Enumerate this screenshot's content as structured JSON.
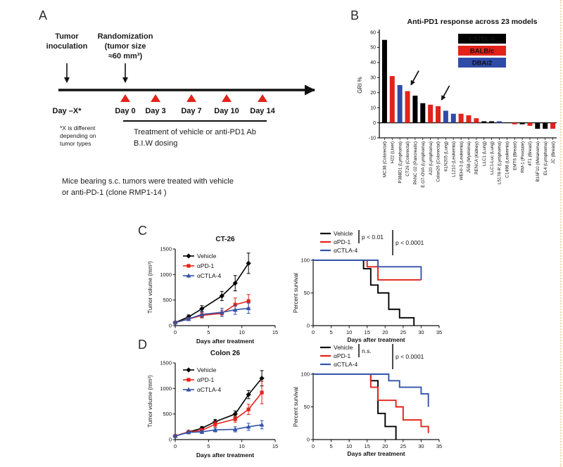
{
  "page": {
    "border_color": "#f2d8a8"
  },
  "colors": {
    "black": "#000000",
    "red": "#e2231a",
    "blue": "#2e4ba8",
    "survival_blue": "#3353a8"
  },
  "panel_a": {
    "label": "A",
    "tumor_inoculation_lines": [
      "Tumor",
      "inoculation"
    ],
    "randomization_lines": [
      "Randomization",
      "(tumor size",
      "≈60 mm³)"
    ],
    "day_labels": [
      "Day –X*",
      "Day 0",
      "Day 3",
      "Day 7",
      "Day 10",
      "Day 14"
    ],
    "footnote_lines": [
      "*X is different",
      "depending on",
      "tumor types"
    ],
    "treatment_lines": [
      "Treatment of vehicle or anti-PD1 Ab",
      "B.I.W dosing"
    ],
    "caption_lines": [
      "Mice bearing s.c. tumors were treated with vehicle",
      "or anti-PD-1 (clone RMP1-14 )"
    ]
  },
  "panel_b": {
    "label": "B"
  },
  "panel_c": {
    "label": "C"
  },
  "panel_d": {
    "label": "D"
  },
  "chart_data": [
    {
      "id": "b_bar",
      "type": "bar",
      "title": "Anti-PD1 response across 23 models",
      "ylabel": "GRI %",
      "ylim": [
        -10,
        60
      ],
      "yticks": [
        -10,
        0,
        10,
        20,
        30,
        40,
        50,
        60
      ],
      "categories": [
        "MC38 (Colorectal)",
        "H22 (Liver)",
        "P388D1 (Lymphoma)",
        "CT26 (Colorectal)",
        "PANC 02 (Pancreatic)",
        "E.G7-OVA (Lymphoma)",
        "A20 (Lymphoma)",
        "Colon26 (Colorectal)",
        "KLN205 (Lung)",
        "L1210 (Leukemia)",
        "WEHI-3 (Leukemia)",
        "J558 (Myeloma)",
        "RENCA (Kidney)",
        "LLC1 (Lung)",
        "LLC1-Luc (Lung)",
        "L5178-R (Lymphoma)",
        "C1498 (Leukemia)",
        "EMT6 (Breast)",
        "RM-1 (Prostate)",
        "4T1 (Breast)",
        "B16F10 (Melanoma)",
        "EL4 (Lymphoma)",
        "JC (Breast)"
      ],
      "values": [
        55,
        31,
        25,
        21,
        18,
        13,
        12,
        11,
        8,
        6,
        6,
        5,
        3,
        1,
        1,
        1,
        0,
        -1,
        -1,
        -2,
        -4,
        -4,
        -4
      ],
      "strains": [
        "C57BL/6",
        "BALB/c",
        "DBA/2",
        "BALB/c",
        "C57BL/6",
        "C57BL/6",
        "BALB/c",
        "BALB/c",
        "DBA/2",
        "DBA/2",
        "BALB/c",
        "BALB/c",
        "BALB/c",
        "C57BL/6",
        "C57BL/6",
        "DBA/2",
        "C57BL/6",
        "BALB/c",
        "C57BL/6",
        "BALB/c",
        "C57BL/6",
        "C57BL/6",
        "BALB/c"
      ],
      "strain_colors": {
        "C57BL/6": "#000000",
        "BALB/c": "#e2231a",
        "DBA/2": "#2e4ba8"
      },
      "legend": [
        {
          "label": "C57BL/6",
          "color": "#000000"
        },
        {
          "label": "BALB/c",
          "color": "#e2231a"
        },
        {
          "label": "DBA/2",
          "color": "#2e4ba8"
        }
      ],
      "arrow_indices": [
        3,
        7
      ],
      "legend_position": "upper right",
      "grid": false
    },
    {
      "id": "c_growth",
      "type": "line",
      "title": "CT-26",
      "xlabel": "Days after treatment",
      "ylabel": "Tumor volume (mm³)",
      "xlim": [
        0,
        15
      ],
      "ylim": [
        0,
        1500
      ],
      "xticks": [
        0,
        5,
        10,
        15
      ],
      "yticks": [
        0,
        500,
        1000,
        1500
      ],
      "x": [
        0,
        2,
        4,
        7,
        9,
        11
      ],
      "series": [
        {
          "name": "Vehicle",
          "color": "#000000",
          "marker": "diamond",
          "values": [
            60,
            170,
            330,
            580,
            830,
            1220
          ],
          "errors": [
            20,
            40,
            60,
            90,
            150,
            200
          ]
        },
        {
          "name": "αPD-1",
          "color": "#e2231a",
          "marker": "square",
          "values": [
            60,
            130,
            200,
            240,
            410,
            480
          ],
          "errors": [
            20,
            30,
            50,
            60,
            130,
            130
          ]
        },
        {
          "name": "αCTLA-4",
          "color": "#3353a8",
          "marker": "triangle",
          "values": [
            60,
            130,
            220,
            260,
            310,
            340
          ],
          "errors": [
            20,
            30,
            60,
            80,
            90,
            100
          ]
        }
      ],
      "legend_position": "upper left",
      "grid": false
    },
    {
      "id": "c_survival",
      "type": "step",
      "xlabel": "Days after treatment",
      "ylabel": "Percent survival",
      "xlim": [
        0,
        35
      ],
      "ylim": [
        0,
        100
      ],
      "xticks": [
        0,
        5,
        10,
        15,
        20,
        25,
        30,
        35
      ],
      "yticks": [
        0,
        50,
        100
      ],
      "series": [
        {
          "name": "Vehicle",
          "color": "#000000",
          "points": [
            [
              0,
              100
            ],
            [
              14,
              100
            ],
            [
              14,
              87
            ],
            [
              16,
              87
            ],
            [
              16,
              62
            ],
            [
              18,
              62
            ],
            [
              18,
              50
            ],
            [
              21,
              50
            ],
            [
              21,
              25
            ],
            [
              24,
              25
            ],
            [
              24,
              12
            ],
            [
              28,
              12
            ],
            [
              28,
              0
            ]
          ]
        },
        {
          "name": "αPD-1",
          "color": "#e2231a",
          "points": [
            [
              0,
              100
            ],
            [
              15,
              100
            ],
            [
              15,
              90
            ],
            [
              18,
              90
            ],
            [
              18,
              70
            ],
            [
              30,
              70
            ]
          ]
        },
        {
          "name": "αCTLA-4",
          "color": "#3353a8",
          "points": [
            [
              0,
              100
            ],
            [
              18,
              100
            ],
            [
              18,
              90
            ],
            [
              30,
              90
            ],
            [
              30,
              70
            ]
          ]
        }
      ],
      "annotations": [
        {
          "text": "p < 0.01"
        },
        {
          "text": "p < 0.0001"
        }
      ],
      "legend_position": "upper left",
      "grid": false
    },
    {
      "id": "d_growth",
      "type": "line",
      "title": "Colon 26",
      "xlabel": "Days after treatment",
      "ylabel": "Tumor volume (mm³)",
      "xlim": [
        0,
        15
      ],
      "ylim": [
        0,
        1500
      ],
      "xticks": [
        0,
        5,
        10,
        15
      ],
      "yticks": [
        0,
        500,
        1000,
        1500
      ],
      "x": [
        0,
        2,
        4,
        6,
        9,
        11,
        13
      ],
      "series": [
        {
          "name": "Vehicle",
          "color": "#000000",
          "marker": "diamond",
          "values": [
            70,
            150,
            220,
            350,
            500,
            880,
            1200
          ],
          "errors": [
            15,
            25,
            35,
            45,
            60,
            80,
            150
          ]
        },
        {
          "name": "αPD-1",
          "color": "#e2231a",
          "marker": "square",
          "values": [
            70,
            150,
            180,
            300,
            400,
            590,
            920
          ],
          "errors": [
            15,
            25,
            35,
            50,
            60,
            100,
            220
          ]
        },
        {
          "name": "αCTLA-4",
          "color": "#3353a8",
          "marker": "triangle",
          "values": [
            70,
            140,
            150,
            190,
            200,
            250,
            290
          ],
          "errors": [
            15,
            20,
            30,
            40,
            50,
            70,
            80
          ]
        }
      ],
      "legend_position": "upper left",
      "grid": false
    },
    {
      "id": "d_survival",
      "type": "step",
      "xlabel": "Days after treatment",
      "ylabel": "Percent survival",
      "xlim": [
        0,
        35
      ],
      "ylim": [
        0,
        100
      ],
      "xticks": [
        0,
        5,
        10,
        15,
        20,
        25,
        30,
        35
      ],
      "yticks": [
        0,
        50,
        100
      ],
      "series": [
        {
          "name": "Vehicle",
          "color": "#000000",
          "points": [
            [
              0,
              100
            ],
            [
              16,
              100
            ],
            [
              16,
              90
            ],
            [
              18,
              90
            ],
            [
              18,
              40
            ],
            [
              20,
              40
            ],
            [
              20,
              20
            ],
            [
              23,
              20
            ],
            [
              23,
              0
            ]
          ]
        },
        {
          "name": "αPD-1",
          "color": "#e2231a",
          "points": [
            [
              0,
              100
            ],
            [
              16,
              100
            ],
            [
              16,
              80
            ],
            [
              18,
              80
            ],
            [
              18,
              60
            ],
            [
              23,
              60
            ],
            [
              23,
              50
            ],
            [
              25,
              50
            ],
            [
              25,
              30
            ],
            [
              30,
              30
            ],
            [
              30,
              20
            ],
            [
              32,
              20
            ],
            [
              32,
              10
            ]
          ]
        },
        {
          "name": "αCTLA-4",
          "color": "#3353a8",
          "points": [
            [
              0,
              100
            ],
            [
              21,
              100
            ],
            [
              21,
              90
            ],
            [
              24,
              90
            ],
            [
              24,
              80
            ],
            [
              30,
              80
            ],
            [
              30,
              70
            ],
            [
              32,
              70
            ],
            [
              32,
              50
            ]
          ]
        }
      ],
      "annotations": [
        {
          "text": "n.s."
        },
        {
          "text": "p < 0.0001"
        }
      ],
      "legend_position": "upper left",
      "grid": false
    }
  ]
}
